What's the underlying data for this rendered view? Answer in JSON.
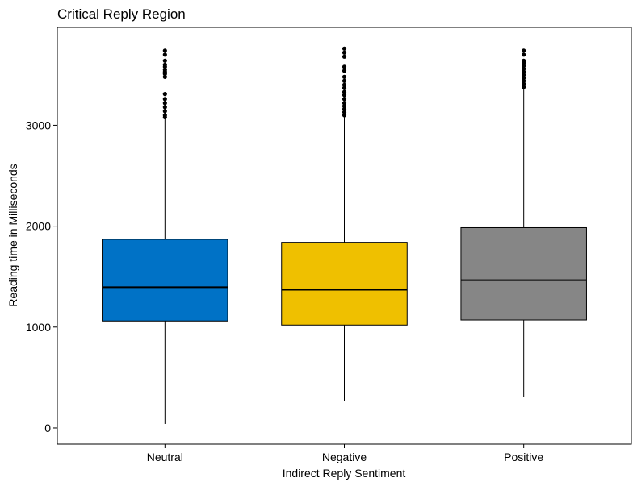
{
  "chart_data": {
    "type": "box",
    "title": "Critical Reply Region",
    "xlabel": "Indirect Reply Sentiment",
    "ylabel": "Reading time in Milliseconds",
    "categories": [
      "Neutral",
      "Negative",
      "Positive"
    ],
    "ylim": [
      -160,
      3970
    ],
    "yticks": [
      0,
      1000,
      2000,
      3000
    ],
    "grid": false,
    "legend": "none",
    "boxes": [
      {
        "name": "Neutral",
        "color": "#0072C6",
        "whisker_low": 40,
        "q1": 1060,
        "median": 1395,
        "q3": 1870,
        "whisker_high": 3060,
        "outliers": [
          3080,
          3100,
          3140,
          3180,
          3220,
          3260,
          3310,
          3480,
          3510,
          3530,
          3550,
          3580,
          3600,
          3640,
          3700,
          3740
        ]
      },
      {
        "name": "Negative",
        "color": "#EFC000",
        "whisker_low": 270,
        "q1": 1020,
        "median": 1370,
        "q3": 1840,
        "whisker_high": 3080,
        "outliers": [
          3100,
          3130,
          3160,
          3190,
          3220,
          3260,
          3300,
          3330,
          3370,
          3400,
          3440,
          3480,
          3540,
          3580,
          3680,
          3720,
          3760
        ]
      },
      {
        "name": "Positive",
        "color": "#868686",
        "whisker_low": 310,
        "q1": 1070,
        "median": 1465,
        "q3": 1985,
        "whisker_high": 3360,
        "outliers": [
          3380,
          3410,
          3440,
          3470,
          3500,
          3530,
          3560,
          3590,
          3620,
          3640,
          3700,
          3740
        ]
      }
    ]
  }
}
